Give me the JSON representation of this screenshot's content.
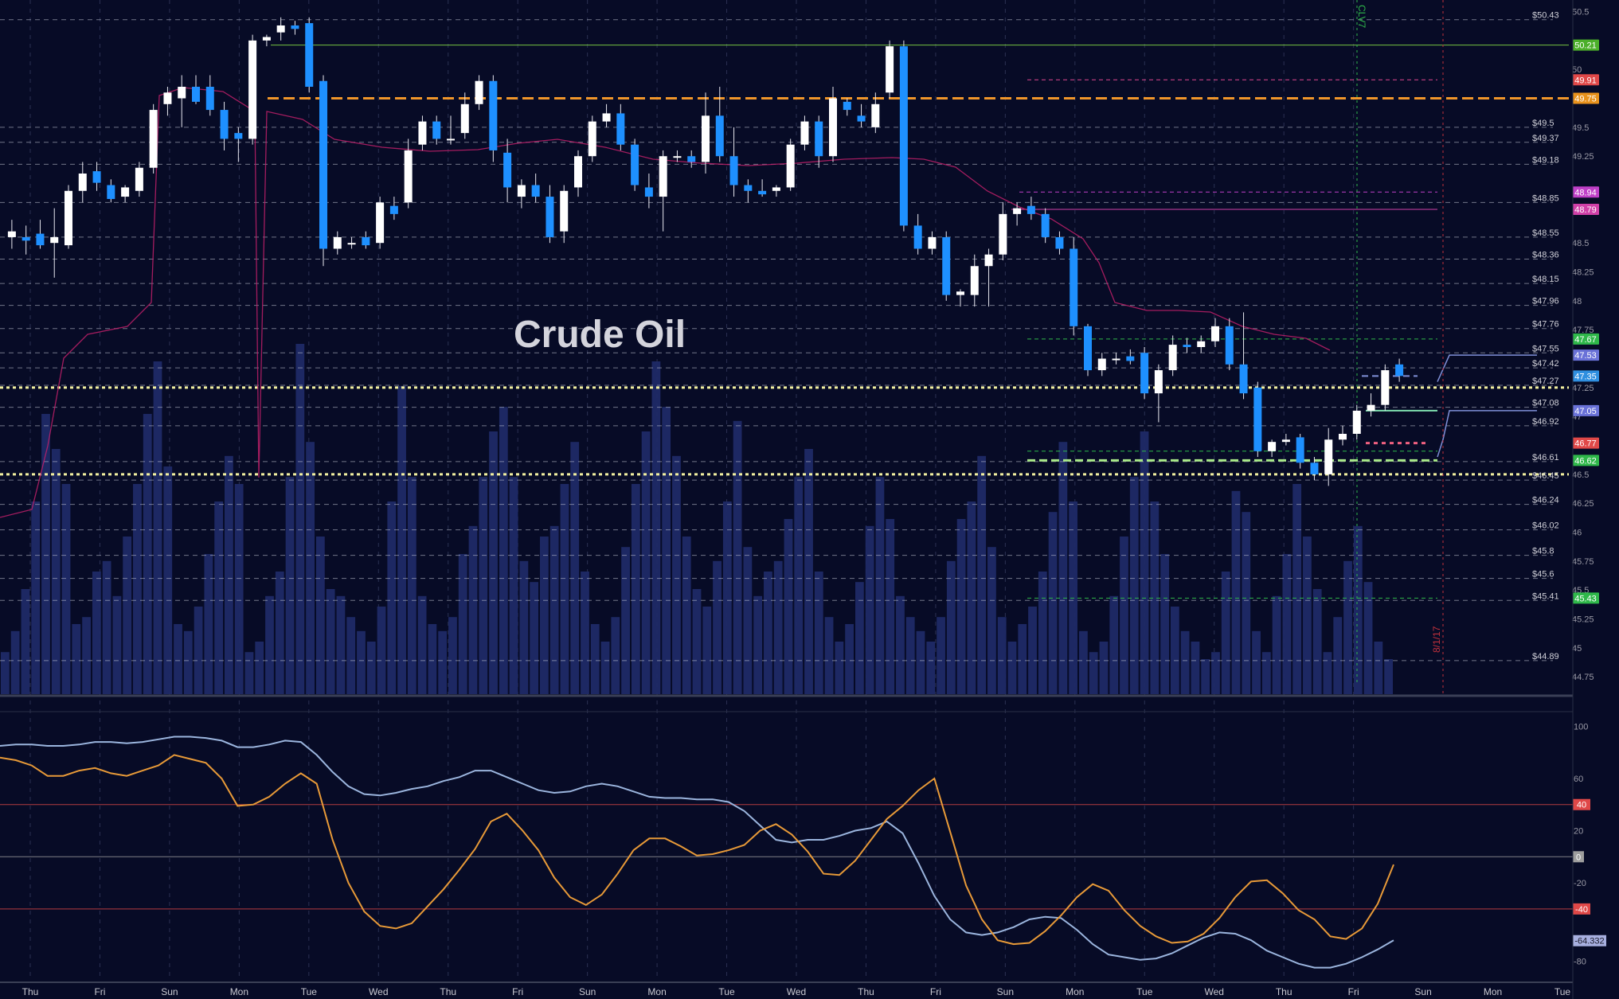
{
  "chart_data": {
    "type": "candlestick",
    "title": "Crude Oil",
    "x_axis": {
      "labels": [
        "Thu",
        "Fri",
        "Sun",
        "Mon",
        "Tue",
        "Wed",
        "Thu",
        "Fri",
        "Sun",
        "Mon",
        "Tue",
        "Wed",
        "Thu",
        "Fri",
        "Sun",
        "Mon",
        "Tue",
        "Wed",
        "Thu",
        "Fri",
        "Sun",
        "Mon",
        "Tue"
      ]
    },
    "price_axis": {
      "range": [
        44.6,
        50.6
      ],
      "ticks": [
        "50.5",
        "50",
        "49.5",
        "49.25",
        "48.5",
        "48.25",
        "48",
        "47.75",
        "47.25",
        "47",
        "46.5",
        "46.25",
        "46",
        "45.75",
        "45.5",
        "45.25",
        "45",
        "44.75"
      ]
    },
    "price_levels": [
      {
        "label": "$50.43",
        "value": 50.43
      },
      {
        "label": "$49.5",
        "value": 49.5
      },
      {
        "label": "$49.37",
        "value": 49.37
      },
      {
        "label": "$49.18",
        "value": 49.18
      },
      {
        "label": "$48.85",
        "value": 48.85
      },
      {
        "label": "$48.55",
        "value": 48.55
      },
      {
        "label": "$48.36",
        "value": 48.36
      },
      {
        "label": "$48.15",
        "value": 48.15
      },
      {
        "label": "$47.96",
        "value": 47.96
      },
      {
        "label": "$47.76",
        "value": 47.76
      },
      {
        "label": "$47.55",
        "value": 47.55
      },
      {
        "label": "$47.42",
        "value": 47.42
      },
      {
        "label": "$47.27",
        "value": 47.27
      },
      {
        "label": "$47.08",
        "value": 47.08
      },
      {
        "label": "$46.92",
        "value": 46.92
      },
      {
        "label": "$46.61",
        "value": 46.61
      },
      {
        "label": "$46.45",
        "value": 46.45
      },
      {
        "label": "$46.24",
        "value": 46.24
      },
      {
        "label": "$46.02",
        "value": 46.02
      },
      {
        "label": "$45.8",
        "value": 45.8
      },
      {
        "label": "$45.6",
        "value": 45.6
      },
      {
        "label": "$45.41",
        "value": 45.41
      },
      {
        "label": "$44.89",
        "value": 44.89
      }
    ],
    "price_badges": [
      {
        "label": "50.21",
        "value": 50.21,
        "color": "#4caf2a"
      },
      {
        "label": "49.91",
        "value": 49.91,
        "color": "#e04848"
      },
      {
        "label": "49.75",
        "value": 49.75,
        "color": "#e8921c"
      },
      {
        "label": "48.94",
        "value": 48.94,
        "color": "#c040c8"
      },
      {
        "label": "48.79",
        "value": 48.79,
        "color": "#d040a8"
      },
      {
        "label": "47.67",
        "value": 47.67,
        "color": "#2fb84a"
      },
      {
        "label": "47.53",
        "value": 47.53,
        "color": "#6a72d8"
      },
      {
        "label": "47.35",
        "value": 47.35,
        "color": "#2f8fe0"
      },
      {
        "label": "47.05",
        "value": 47.05,
        "color": "#6a72d8"
      },
      {
        "label": "46.77",
        "value": 46.77,
        "color": "#e04848"
      },
      {
        "label": "46.62",
        "value": 46.62,
        "color": "#2fb84a"
      },
      {
        "label": "45.43",
        "value": 45.43,
        "color": "#2fb84a"
      }
    ],
    "annotations": [
      "CLV7",
      "8/1/17"
    ],
    "candles": [
      {
        "o": 48.55,
        "h": 48.7,
        "l": 48.45,
        "c": 48.6
      },
      {
        "o": 48.55,
        "h": 48.65,
        "l": 48.4,
        "c": 48.52
      },
      {
        "o": 48.58,
        "h": 48.7,
        "l": 48.45,
        "c": 48.48
      },
      {
        "o": 48.5,
        "h": 48.8,
        "l": 48.2,
        "c": 48.55
      },
      {
        "o": 48.48,
        "h": 49.0,
        "l": 48.45,
        "c": 48.95
      },
      {
        "o": 48.95,
        "h": 49.2,
        "l": 48.85,
        "c": 49.1
      },
      {
        "o": 49.12,
        "h": 49.2,
        "l": 48.95,
        "c": 49.02
      },
      {
        "o": 49.0,
        "h": 49.05,
        "l": 48.85,
        "c": 48.88
      },
      {
        "o": 48.9,
        "h": 49.0,
        "l": 48.85,
        "c": 48.98
      },
      {
        "o": 48.95,
        "h": 49.2,
        "l": 48.9,
        "c": 49.15
      },
      {
        "o": 49.15,
        "h": 49.7,
        "l": 49.1,
        "c": 49.65
      },
      {
        "o": 49.7,
        "h": 49.85,
        "l": 49.6,
        "c": 49.8
      },
      {
        "o": 49.75,
        "h": 49.95,
        "l": 49.5,
        "c": 49.85
      },
      {
        "o": 49.85,
        "h": 49.95,
        "l": 49.7,
        "c": 49.72
      },
      {
        "o": 49.85,
        "h": 49.95,
        "l": 49.6,
        "c": 49.65
      },
      {
        "o": 49.65,
        "h": 49.72,
        "l": 49.3,
        "c": 49.4
      },
      {
        "o": 49.45,
        "h": 49.5,
        "l": 49.2,
        "c": 49.4
      },
      {
        "o": 49.4,
        "h": 50.3,
        "l": 49.35,
        "c": 50.25
      },
      {
        "o": 50.25,
        "h": 50.3,
        "l": 50.2,
        "c": 50.28
      },
      {
        "o": 50.32,
        "h": 50.45,
        "l": 50.25,
        "c": 50.38
      },
      {
        "o": 50.38,
        "h": 50.42,
        "l": 50.3,
        "c": 50.35
      },
      {
        "o": 50.4,
        "h": 50.45,
        "l": 49.8,
        "c": 49.85
      },
      {
        "o": 49.9,
        "h": 49.95,
        "l": 48.3,
        "c": 48.45
      },
      {
        "o": 48.45,
        "h": 48.6,
        "l": 48.4,
        "c": 48.55
      },
      {
        "o": 48.5,
        "h": 48.55,
        "l": 48.45,
        "c": 48.5
      },
      {
        "o": 48.55,
        "h": 48.6,
        "l": 48.45,
        "c": 48.48
      },
      {
        "o": 48.5,
        "h": 48.9,
        "l": 48.45,
        "c": 48.85
      },
      {
        "o": 48.82,
        "h": 48.9,
        "l": 48.7,
        "c": 48.75
      },
      {
        "o": 48.85,
        "h": 49.4,
        "l": 48.8,
        "c": 49.3
      },
      {
        "o": 49.35,
        "h": 49.6,
        "l": 49.3,
        "c": 49.55
      },
      {
        "o": 49.55,
        "h": 49.6,
        "l": 49.35,
        "c": 49.4
      },
      {
        "o": 49.4,
        "h": 49.6,
        "l": 49.35,
        "c": 49.4
      },
      {
        "o": 49.45,
        "h": 49.8,
        "l": 49.4,
        "c": 49.7
      },
      {
        "o": 49.7,
        "h": 49.95,
        "l": 49.65,
        "c": 49.9
      },
      {
        "o": 49.9,
        "h": 49.95,
        "l": 49.2,
        "c": 49.3
      },
      {
        "o": 49.28,
        "h": 49.4,
        "l": 48.85,
        "c": 48.98
      },
      {
        "o": 48.9,
        "h": 49.05,
        "l": 48.8,
        "c": 49.0
      },
      {
        "o": 49.0,
        "h": 49.1,
        "l": 48.85,
        "c": 48.9
      },
      {
        "o": 48.9,
        "h": 49.0,
        "l": 48.5,
        "c": 48.55
      },
      {
        "o": 48.6,
        "h": 49.0,
        "l": 48.5,
        "c": 48.95
      },
      {
        "o": 48.98,
        "h": 49.3,
        "l": 48.9,
        "c": 49.25
      },
      {
        "o": 49.25,
        "h": 49.6,
        "l": 49.2,
        "c": 49.55
      },
      {
        "o": 49.55,
        "h": 49.7,
        "l": 49.5,
        "c": 49.62
      },
      {
        "o": 49.62,
        "h": 49.7,
        "l": 49.3,
        "c": 49.35
      },
      {
        "o": 49.35,
        "h": 49.4,
        "l": 48.95,
        "c": 49.0
      },
      {
        "o": 48.98,
        "h": 49.1,
        "l": 48.8,
        "c": 48.9
      },
      {
        "o": 48.9,
        "h": 49.3,
        "l": 48.6,
        "c": 49.25
      },
      {
        "o": 49.25,
        "h": 49.3,
        "l": 49.2,
        "c": 49.25
      },
      {
        "o": 49.25,
        "h": 49.3,
        "l": 49.15,
        "c": 49.2
      },
      {
        "o": 49.2,
        "h": 49.8,
        "l": 49.1,
        "c": 49.6
      },
      {
        "o": 49.6,
        "h": 49.85,
        "l": 49.2,
        "c": 49.25
      },
      {
        "o": 49.25,
        "h": 49.5,
        "l": 48.9,
        "c": 49.0
      },
      {
        "o": 49.0,
        "h": 49.05,
        "l": 48.85,
        "c": 48.95
      },
      {
        "o": 48.95,
        "h": 49.05,
        "l": 48.9,
        "c": 48.92
      },
      {
        "o": 48.95,
        "h": 49.0,
        "l": 48.9,
        "c": 48.98
      },
      {
        "o": 48.98,
        "h": 49.4,
        "l": 48.95,
        "c": 49.35
      },
      {
        "o": 49.35,
        "h": 49.6,
        "l": 49.3,
        "c": 49.55
      },
      {
        "o": 49.55,
        "h": 49.6,
        "l": 49.15,
        "c": 49.25
      },
      {
        "o": 49.25,
        "h": 49.85,
        "l": 49.2,
        "c": 49.75
      },
      {
        "o": 49.72,
        "h": 49.75,
        "l": 49.6,
        "c": 49.65
      },
      {
        "o": 49.6,
        "h": 49.7,
        "l": 49.5,
        "c": 49.55
      },
      {
        "o": 49.5,
        "h": 49.8,
        "l": 49.45,
        "c": 49.7
      },
      {
        "o": 49.8,
        "h": 50.25,
        "l": 49.75,
        "c": 50.2
      },
      {
        "o": 50.2,
        "h": 50.25,
        "l": 48.6,
        "c": 48.65
      },
      {
        "o": 48.65,
        "h": 48.75,
        "l": 48.4,
        "c": 48.45
      },
      {
        "o": 48.45,
        "h": 48.6,
        "l": 48.4,
        "c": 48.55
      },
      {
        "o": 48.55,
        "h": 48.6,
        "l": 48.0,
        "c": 48.05
      },
      {
        "o": 48.05,
        "h": 48.1,
        "l": 47.95,
        "c": 48.08
      },
      {
        "o": 48.05,
        "h": 48.4,
        "l": 47.95,
        "c": 48.3
      },
      {
        "o": 48.3,
        "h": 48.45,
        "l": 47.95,
        "c": 48.4
      },
      {
        "o": 48.4,
        "h": 48.85,
        "l": 48.35,
        "c": 48.75
      },
      {
        "o": 48.75,
        "h": 48.85,
        "l": 48.65,
        "c": 48.8
      },
      {
        "o": 48.82,
        "h": 48.9,
        "l": 48.7,
        "c": 48.75
      },
      {
        "o": 48.75,
        "h": 48.8,
        "l": 48.5,
        "c": 48.55
      },
      {
        "o": 48.55,
        "h": 48.6,
        "l": 48.4,
        "c": 48.45
      },
      {
        "o": 48.45,
        "h": 48.55,
        "l": 47.7,
        "c": 47.78
      },
      {
        "o": 47.78,
        "h": 47.8,
        "l": 47.35,
        "c": 47.4
      },
      {
        "o": 47.4,
        "h": 47.55,
        "l": 47.35,
        "c": 47.5
      },
      {
        "o": 47.5,
        "h": 47.55,
        "l": 47.45,
        "c": 47.5
      },
      {
        "o": 47.52,
        "h": 47.58,
        "l": 47.45,
        "c": 47.48
      },
      {
        "o": 47.55,
        "h": 47.6,
        "l": 47.15,
        "c": 47.2
      },
      {
        "o": 47.2,
        "h": 47.45,
        "l": 46.95,
        "c": 47.4
      },
      {
        "o": 47.4,
        "h": 47.7,
        "l": 47.35,
        "c": 47.62
      },
      {
        "o": 47.62,
        "h": 47.68,
        "l": 47.55,
        "c": 47.6
      },
      {
        "o": 47.6,
        "h": 47.7,
        "l": 47.55,
        "c": 47.65
      },
      {
        "o": 47.65,
        "h": 47.85,
        "l": 47.6,
        "c": 47.78
      },
      {
        "o": 47.78,
        "h": 47.85,
        "l": 47.4,
        "c": 47.45
      },
      {
        "o": 47.45,
        "h": 47.9,
        "l": 47.15,
        "c": 47.2
      },
      {
        "o": 47.25,
        "h": 47.3,
        "l": 46.65,
        "c": 46.7
      },
      {
        "o": 46.7,
        "h": 46.8,
        "l": 46.65,
        "c": 46.78
      },
      {
        "o": 46.78,
        "h": 46.85,
        "l": 46.75,
        "c": 46.8
      },
      {
        "o": 46.82,
        "h": 46.85,
        "l": 46.55,
        "c": 46.6
      },
      {
        "o": 46.6,
        "h": 46.65,
        "l": 46.45,
        "c": 46.5
      },
      {
        "o": 46.5,
        "h": 46.9,
        "l": 46.4,
        "c": 46.8
      },
      {
        "o": 46.8,
        "h": 46.92,
        "l": 46.75,
        "c": 46.85
      },
      {
        "o": 46.85,
        "h": 47.1,
        "l": 46.8,
        "c": 47.05
      },
      {
        "o": 47.05,
        "h": 47.2,
        "l": 47.0,
        "c": 47.1
      },
      {
        "o": 47.1,
        "h": 47.45,
        "l": 47.05,
        "c": 47.4
      },
      {
        "o": 47.45,
        "h": 47.5,
        "l": 47.3,
        "c": 47.35
      }
    ],
    "volume": [
      12,
      18,
      30,
      55,
      80,
      70,
      60,
      20,
      22,
      35,
      38,
      28,
      45,
      60,
      80,
      95,
      65,
      20,
      18,
      25,
      40,
      55,
      68,
      60,
      12,
      15,
      28,
      35,
      62,
      100,
      72,
      45,
      30,
      28,
      22,
      18,
      15,
      25,
      55,
      88,
      62,
      28,
      20,
      18,
      22,
      40,
      48,
      62,
      75,
      82,
      62,
      38,
      32,
      45,
      48,
      60,
      72,
      35,
      20,
      15,
      22,
      42,
      60,
      75,
      95,
      82,
      68,
      45,
      30,
      25,
      38,
      55,
      78,
      42,
      28,
      35,
      38,
      50,
      62,
      70,
      35,
      22,
      15,
      20,
      32,
      48,
      62,
      50,
      28,
      22,
      18,
      15,
      22,
      38,
      50,
      55,
      68,
      42,
      22,
      15,
      20,
      25,
      35,
      52,
      72,
      55,
      18,
      12,
      15,
      28,
      45,
      62,
      75,
      55,
      40,
      25,
      18,
      15,
      10,
      12,
      35,
      58,
      52,
      18,
      12,
      28,
      40,
      60,
      45,
      30,
      12,
      22,
      38,
      48,
      32,
      15,
      10
    ],
    "oscillator": {
      "type": "line",
      "y_range": [
        -95,
        110
      ],
      "y_ticks": [
        "100",
        "60",
        "20",
        "-20",
        "-80"
      ],
      "levels": [
        {
          "label": "40",
          "value": 40,
          "color": "#e04848"
        },
        {
          "label": "0",
          "value": 0,
          "color": "#9e9e9e"
        },
        {
          "label": "-40",
          "value": -40,
          "color": "#e04848"
        }
      ],
      "current_badge": {
        "label": "-64.332",
        "value": -64.332,
        "color": "#a8b0e0"
      },
      "series": [
        {
          "color": "#9bb5de",
          "values": [
            85,
            86,
            86,
            85,
            85,
            86,
            88,
            88,
            87,
            88,
            90,
            92,
            92,
            91,
            89,
            84,
            84,
            86,
            89,
            88,
            78,
            65,
            54,
            48,
            47,
            49,
            52,
            54,
            58,
            61,
            66,
            66,
            61,
            56,
            51,
            49,
            50,
            54,
            56,
            54,
            50,
            46,
            45,
            45,
            44,
            44,
            42,
            35,
            24,
            13,
            11,
            13,
            13,
            16,
            20,
            22,
            27,
            18,
            -5,
            -30,
            -48,
            -58,
            -60,
            -58,
            -54,
            -48,
            -46,
            -47,
            -56,
            -67,
            -75,
            -77,
            -79,
            -78,
            -74,
            -68,
            -62,
            -58,
            -59,
            -64,
            -72,
            -77,
            -82,
            -85,
            -85,
            -82,
            -77,
            -71,
            -64
          ]
        },
        {
          "color": "#e89a38",
          "values": [
            76,
            74,
            70,
            62,
            62,
            66,
            68,
            64,
            62,
            66,
            70,
            78,
            75,
            72,
            60,
            39,
            40,
            46,
            56,
            64,
            56,
            13,
            -20,
            -42,
            -53,
            -55,
            -51,
            -38,
            -25,
            -10,
            6,
            27,
            33,
            20,
            5,
            -16,
            -31,
            -37,
            -29,
            -13,
            5,
            14,
            14,
            8,
            1,
            2,
            5,
            9,
            20,
            25,
            17,
            4,
            -13,
            -14,
            -3,
            13,
            29,
            39,
            51,
            60,
            19,
            -22,
            -48,
            -64,
            -67,
            -66,
            -57,
            -45,
            -31,
            -21,
            -26,
            -41,
            -53,
            -61,
            -66,
            -65,
            -59,
            -47,
            -31,
            -19,
            -18,
            -28,
            -41,
            -48,
            -61,
            -63,
            -55,
            -36,
            -6
          ]
        }
      ]
    }
  }
}
